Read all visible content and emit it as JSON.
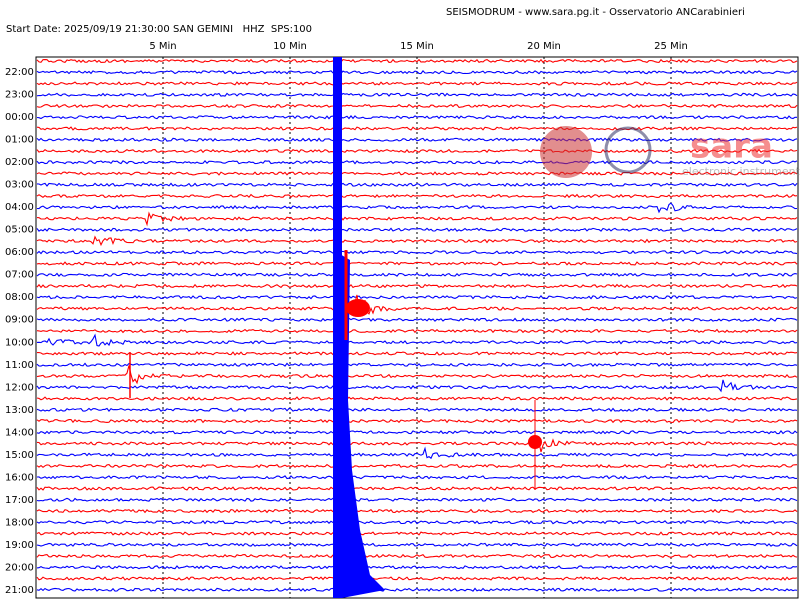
{
  "header": {
    "title": "SEISMODRUM - www.sara.pg.it - Osservatorio ANCarabinieri",
    "start": "Start Date: 2025/09/19 21:30:00 SAN GEMINI   HHZ  SPS:100"
  },
  "x_axis": {
    "ticks": [
      "5 Min",
      "10 Min",
      "15 Min",
      "20 Min",
      "25 Min"
    ]
  },
  "rows": {
    "labels": [
      "22:00",
      "23:00",
      "00:00",
      "01:00",
      "02:00",
      "03:00",
      "04:00",
      "05:00",
      "06:00",
      "07:00",
      "08:00",
      "09:00",
      "10:00",
      "11:00",
      "12:00",
      "13:00",
      "14:00",
      "15:00",
      "16:00",
      "17:00",
      "18:00",
      "19:00",
      "20:00",
      "21:00"
    ]
  },
  "logo": {
    "brand": "sara",
    "subtitle": "electronic instruments"
  }
}
